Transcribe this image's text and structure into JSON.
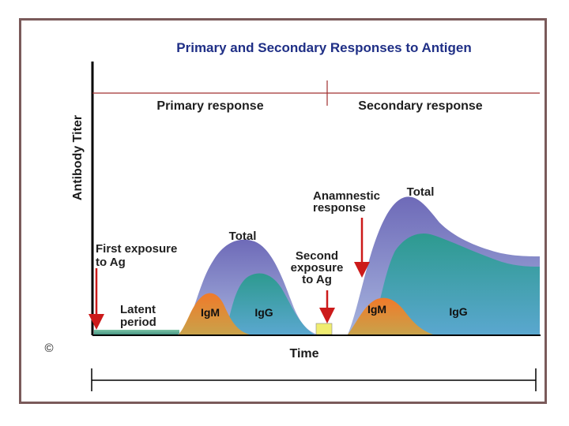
{
  "title": "Primary and Secondary Responses to Antigen",
  "y_axis_label": "Antibody Titer",
  "x_axis_label": "Time",
  "sections": {
    "primary": "Primary response",
    "secondary": "Secondary response"
  },
  "annotations": {
    "first_exposure_line1": "First exposure",
    "first_exposure_line2": "to Ag",
    "latent_line1": "Latent",
    "latent_line2": "period",
    "second_exposure_line1": "Second",
    "second_exposure_line2": "exposure",
    "second_exposure_line3": "to Ag",
    "anamnestic_line1": "Anamnestic",
    "anamnestic_line2": "response"
  },
  "curve_labels": {
    "primary_total": "Total",
    "primary_igm": "IgM",
    "primary_igg": "IgG",
    "secondary_total": "Total",
    "secondary_igm": "IgM",
    "secondary_igg": "IgG"
  },
  "copyright_symbol": "©",
  "colors": {
    "frame": "#7a5a5a",
    "title": "#1f2f86",
    "section_line": "#a03030",
    "arrow": "#cc1a1a",
    "total": "#8a86c8",
    "igg": "#3fa39a",
    "igm": "#e8782a",
    "baseline": "#5fb39a",
    "antigen": "#f0ec70"
  }
}
